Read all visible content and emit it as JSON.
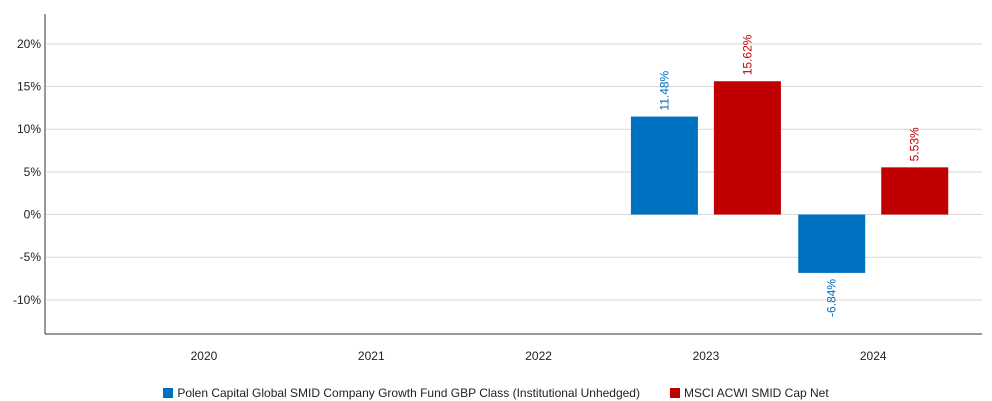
{
  "chart_data": {
    "type": "bar",
    "categories": [
      "2020",
      "2021",
      "2022",
      "2023",
      "2024"
    ],
    "series": [
      {
        "name": "Polen Capital Global SMID Company Growth Fund GBP Class (Institutional Unhedged)",
        "color": "#0070c0",
        "values": [
          null,
          null,
          null,
          11.48,
          -6.84
        ],
        "labels": [
          "",
          "",
          "",
          "11.48%",
          "-6.84%"
        ]
      },
      {
        "name": "MSCI ACWI SMID Cap Net",
        "color": "#c00000",
        "values": [
          null,
          null,
          null,
          15.62,
          5.53
        ],
        "labels": [
          "",
          "",
          "",
          "15.62%",
          "5.53%"
        ]
      }
    ],
    "y_ticks": [
      20,
      15,
      10,
      5,
      0,
      -5,
      -10
    ],
    "y_tick_labels": [
      "20%",
      "15%",
      "10%",
      "5%",
      "0%",
      "-5%",
      "-10%"
    ],
    "ylim": [
      -14,
      23.5
    ],
    "grid": true,
    "legend_position": "bottom"
  }
}
